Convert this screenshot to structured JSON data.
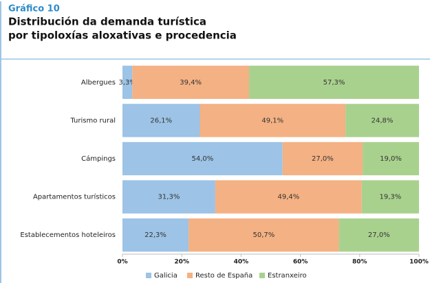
{
  "chart_data": {
    "type": "stacked_barh",
    "kicker": "Gráfico 10",
    "title": [
      "Distribución da demanda turística",
      "por tipoloxías aloxativas e procedencia"
    ],
    "categories": [
      "Albergues",
      "Turismo rural",
      "Cámpings",
      "Apartamentos turísticos",
      "Establecementos hoteleiros"
    ],
    "series": [
      {
        "name": "Galicia",
        "color": "#9dc3e6",
        "values": [
          3.3,
          26.1,
          54.0,
          31.3,
          22.3
        ],
        "value_labels": [
          "3,3%",
          "26,1%",
          "54,0%",
          "31,3%",
          "22,3%"
        ]
      },
      {
        "name": "Resto de España",
        "color": "#f4b183",
        "values": [
          39.4,
          49.1,
          27.0,
          49.4,
          50.7
        ],
        "value_labels": [
          "39,4%",
          "49,1%",
          "27,0%",
          "49,4%",
          "50,7%"
        ]
      },
      {
        "name": "Estranxeiro",
        "color": "#a9d18e",
        "values": [
          57.3,
          24.8,
          19.0,
          19.3,
          27.0
        ],
        "value_labels": [
          "57,3%",
          "24,8%",
          "19,0%",
          "19,3%",
          "27,0%"
        ]
      }
    ],
    "xlim": [
      0,
      100
    ],
    "xticks": [
      {
        "value": 0,
        "label": "0%"
      },
      {
        "value": 20,
        "label": "20%"
      },
      {
        "value": 40,
        "label": "40%"
      },
      {
        "value": 60,
        "label": "60%"
      },
      {
        "value": 80,
        "label": "80%"
      },
      {
        "value": 100,
        "label": "100%"
      }
    ],
    "legend": "bottom"
  }
}
